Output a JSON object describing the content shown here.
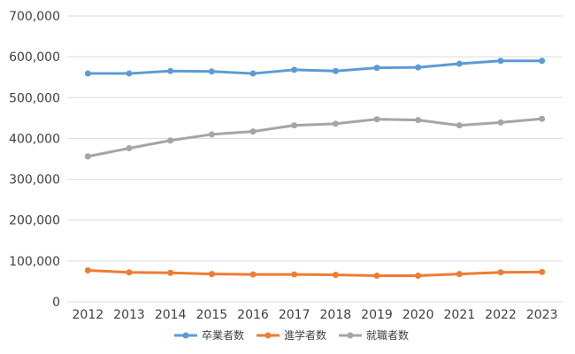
{
  "chart_data": {
    "type": "line",
    "categories": [
      "2012",
      "2013",
      "2014",
      "2015",
      "2016",
      "2017",
      "2018",
      "2019",
      "2020",
      "2021",
      "2022",
      "2023"
    ],
    "ylim": [
      0,
      700000
    ],
    "y_ticks": [
      0,
      100000,
      200000,
      300000,
      400000,
      500000,
      600000,
      700000
    ],
    "y_tick_labels": [
      "0",
      "100,000",
      "200,000",
      "300,000",
      "400,000",
      "500,000",
      "600,000",
      "700,000"
    ],
    "grid": "horizontal",
    "legend_position": "bottom",
    "series": [
      {
        "name": "卒業者数",
        "color": "#5B9BD5",
        "values": [
          559000,
          559000,
          565000,
          564000,
          559000,
          568000,
          565000,
          573000,
          574000,
          583000,
          590000,
          590000
        ]
      },
      {
        "name": "進学者数",
        "color": "#ED7D31",
        "values": [
          77000,
          72000,
          71000,
          68000,
          67000,
          67000,
          66000,
          64000,
          64000,
          68000,
          72000,
          73000
        ]
      },
      {
        "name": "就職者数",
        "color": "#A5A5A5",
        "values": [
          356000,
          376000,
          395000,
          410000,
          417000,
          432000,
          436000,
          447000,
          445000,
          432000,
          439000,
          448000
        ]
      }
    ]
  }
}
